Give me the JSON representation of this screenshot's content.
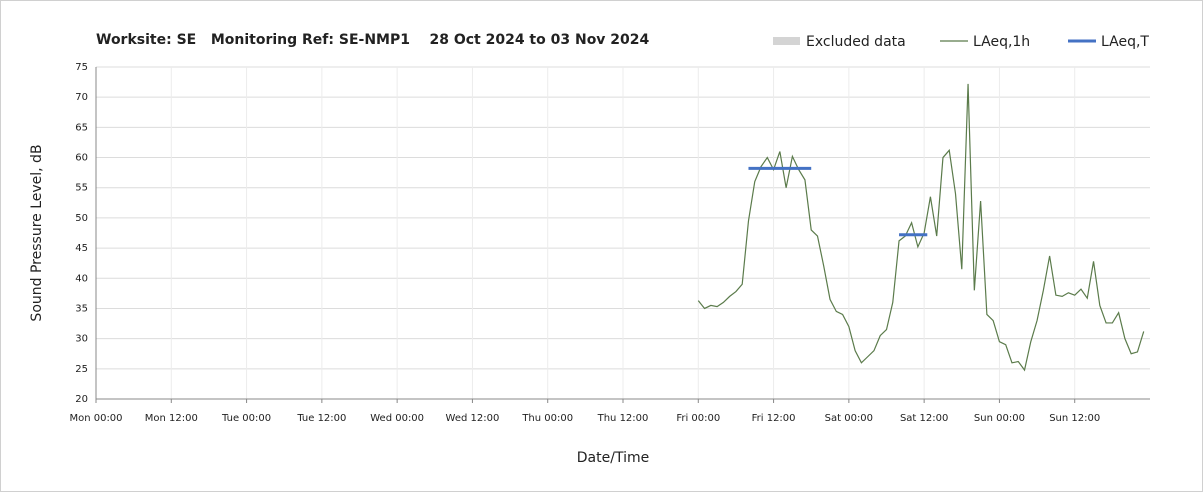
{
  "chart_data": {
    "type": "line",
    "title": "Worksite: SE   Monitoring Ref: SE-NMP1    28 Oct 2024 to 03 Nov 2024",
    "xlabel": "Date/Time",
    "ylabel": "Sound Pressure Level, dB",
    "xlim": [
      0,
      168
    ],
    "ylim": [
      20,
      75
    ],
    "xticks": [
      {
        "value": 0,
        "label": "Mon 00:00"
      },
      {
        "value": 12,
        "label": "Mon 12:00"
      },
      {
        "value": 24,
        "label": "Tue 00:00"
      },
      {
        "value": 36,
        "label": "Tue 12:00"
      },
      {
        "value": 48,
        "label": "Wed 00:00"
      },
      {
        "value": 60,
        "label": "Wed 12:00"
      },
      {
        "value": 72,
        "label": "Thu 00:00"
      },
      {
        "value": 84,
        "label": "Thu 12:00"
      },
      {
        "value": 96,
        "label": "Fri 00:00"
      },
      {
        "value": 108,
        "label": "Fri 12:00"
      },
      {
        "value": 120,
        "label": "Sat 00:00"
      },
      {
        "value": 132,
        "label": "Sat 12:00"
      },
      {
        "value": 144,
        "label": "Sun 00:00"
      },
      {
        "value": 156,
        "label": "Sun 12:00"
      }
    ],
    "yticks": [
      20,
      25,
      30,
      35,
      40,
      45,
      50,
      55,
      60,
      65,
      70,
      75
    ],
    "grid": true,
    "series": [
      {
        "name": "Excluded data",
        "color": "#d4d4d4",
        "x": [],
        "values": []
      },
      {
        "name": "LAeq,1h",
        "color": "#5b7b4b",
        "x": [
          96,
          97,
          98,
          99,
          100,
          101,
          102,
          103,
          104,
          105,
          106,
          107,
          108,
          109,
          110,
          111,
          112,
          113,
          114,
          115,
          116,
          117,
          118,
          119,
          120,
          121,
          122,
          123,
          124,
          125,
          126,
          127,
          128,
          129,
          130,
          131,
          132,
          133,
          134,
          135,
          136,
          137,
          138,
          139,
          140,
          141,
          142,
          143,
          144,
          145,
          146,
          147,
          148,
          149,
          150,
          151,
          152,
          153,
          154,
          155,
          156,
          157,
          158,
          159,
          160,
          161,
          162,
          163,
          164,
          165,
          166,
          167
        ],
        "values": [
          36.3,
          35,
          35.5,
          35.3,
          36,
          37,
          37.8,
          39,
          49.5,
          56,
          58.5,
          60,
          58,
          61,
          55,
          60.2,
          58,
          56.3,
          48,
          47,
          42,
          36.5,
          34.5,
          34,
          32,
          28,
          26,
          27,
          28,
          30.5,
          31.5,
          36,
          46.2,
          47,
          49.2,
          45.2,
          47.5,
          53.5,
          47,
          60,
          61.2,
          54,
          41.5,
          72.2,
          38,
          52.8,
          34,
          33,
          29.5,
          29,
          26,
          26.2,
          24.8,
          29.5,
          33,
          38,
          43.7,
          37.2,
          37,
          37.6,
          37.2,
          38.2,
          36.7,
          42.8,
          35.5,
          32.6,
          32.6,
          34.3,
          30,
          27.5,
          27.8,
          31.2
        ]
      },
      {
        "name": "LAeq,T",
        "color": "#4472c4",
        "x": [
          104,
          114,
          null,
          128,
          132.5
        ],
        "values": [
          58.2,
          58.2,
          null,
          47.2,
          47.2
        ]
      }
    ]
  }
}
